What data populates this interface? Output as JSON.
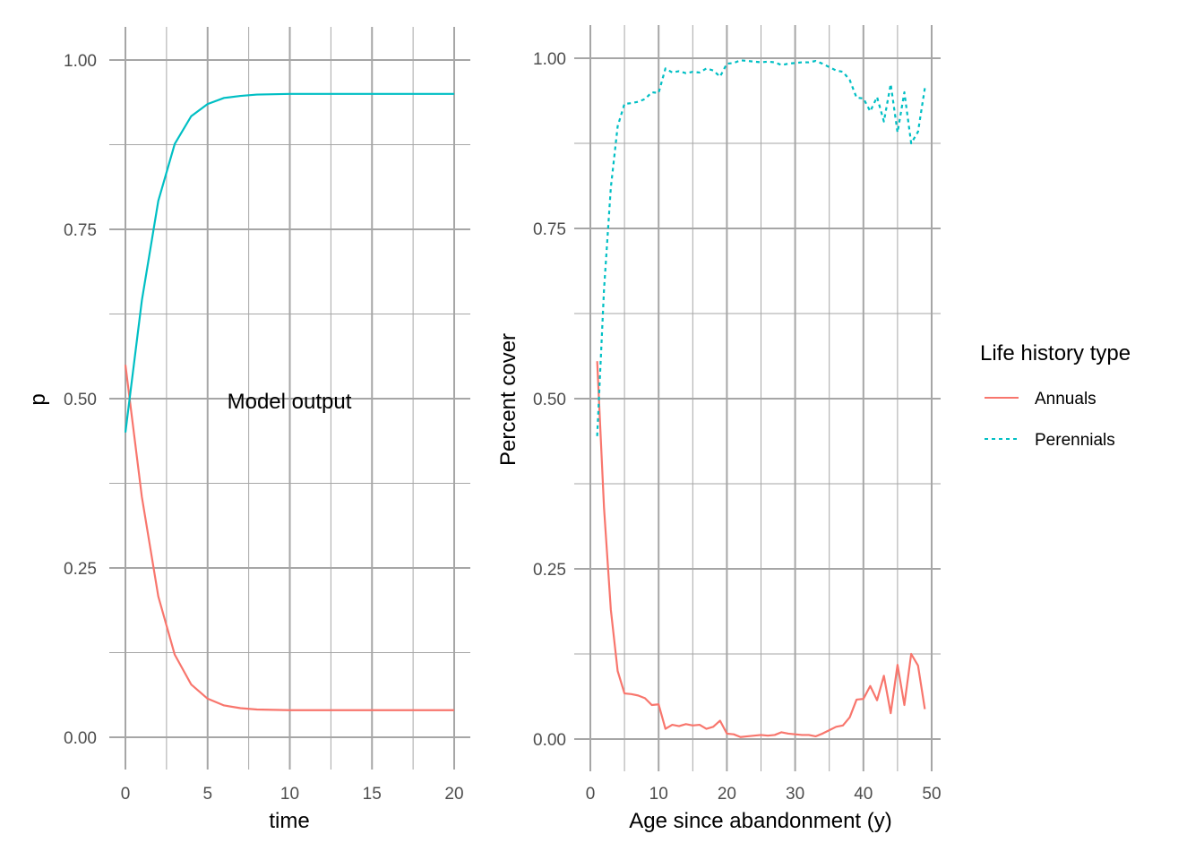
{
  "colors": {
    "annuals": "#F8766D",
    "perennials": "#00BFC4",
    "grid": "#A6A6A6"
  },
  "chart_data": [
    {
      "type": "line",
      "xlabel": "time",
      "ylabel": "p",
      "annotation": "Model output",
      "xlim": [
        0,
        20
      ],
      "ylim": [
        0,
        1
      ],
      "x_ticks": [
        "0",
        "5",
        "10",
        "15",
        "20"
      ],
      "y_ticks": [
        "0.00",
        "0.25",
        "0.50",
        "0.75",
        "1.00"
      ],
      "x": [
        0,
        1,
        2,
        3,
        4,
        5,
        6,
        7,
        8,
        9,
        10,
        11,
        12,
        13,
        14,
        15,
        16,
        17,
        18,
        19,
        20
      ],
      "series": [
        {
          "key": "annuals",
          "dash": "solid",
          "values": [
            0.55,
            0.355,
            0.208,
            0.122,
            0.078,
            0.057,
            0.047,
            0.043,
            0.041,
            0.0405,
            0.04,
            0.04,
            0.04,
            0.04,
            0.04,
            0.04,
            0.04,
            0.04,
            0.04,
            0.04,
            0.04
          ]
        },
        {
          "key": "perennials",
          "dash": "solid",
          "values": [
            0.45,
            0.645,
            0.792,
            0.876,
            0.917,
            0.935,
            0.944,
            0.947,
            0.949,
            0.9495,
            0.95,
            0.95,
            0.95,
            0.95,
            0.95,
            0.95,
            0.95,
            0.95,
            0.95,
            0.95,
            0.95
          ]
        }
      ]
    },
    {
      "type": "line",
      "xlabel": "Age since abandonment (y)",
      "ylabel": "Percent cover",
      "xlim": [
        0,
        50
      ],
      "ylim": [
        0,
        1
      ],
      "x_ticks": [
        "0",
        "10",
        "20",
        "30",
        "40",
        "50"
      ],
      "y_ticks": [
        "0.00",
        "0.25",
        "0.50",
        "0.75",
        "1.00"
      ],
      "legend": {
        "title": "Life history type",
        "position": "right"
      },
      "x": [
        1,
        2,
        3,
        4,
        5,
        6,
        7,
        8,
        9,
        10,
        11,
        12,
        13,
        14,
        15,
        16,
        17,
        18,
        19,
        20,
        21,
        22,
        23,
        24,
        25,
        26,
        27,
        28,
        29,
        30,
        31,
        32,
        33,
        34,
        35,
        36,
        37,
        38,
        39,
        40,
        41,
        42,
        43,
        44,
        45,
        46,
        47,
        48,
        49
      ],
      "series": [
        {
          "key": "annuals",
          "name": "Annuals",
          "dash": "solid",
          "values": [
            0.555,
            0.34,
            0.19,
            0.1,
            0.067,
            0.066,
            0.064,
            0.06,
            0.05,
            0.051,
            0.015,
            0.021,
            0.019,
            0.022,
            0.02,
            0.021,
            0.015,
            0.018,
            0.027,
            0.008,
            0.007,
            0.003,
            0.004,
            0.005,
            0.006,
            0.005,
            0.006,
            0.01,
            0.008,
            0.007,
            0.006,
            0.006,
            0.004,
            0.008,
            0.013,
            0.018,
            0.02,
            0.032,
            0.058,
            0.059,
            0.078,
            0.057,
            0.093,
            0.038,
            0.109,
            0.05,
            0.125,
            0.108,
            0.044
          ]
        },
        {
          "key": "perennials",
          "name": "Perennials",
          "dash": "dashed",
          "values": [
            0.445,
            0.66,
            0.81,
            0.9,
            0.933,
            0.934,
            0.936,
            0.94,
            0.95,
            0.949,
            0.985,
            0.979,
            0.981,
            0.978,
            0.98,
            0.979,
            0.985,
            0.982,
            0.973,
            0.992,
            0.993,
            0.997,
            0.996,
            0.995,
            0.994,
            0.995,
            0.994,
            0.99,
            0.992,
            0.993,
            0.994,
            0.994,
            0.996,
            0.992,
            0.987,
            0.982,
            0.98,
            0.968,
            0.942,
            0.941,
            0.922,
            0.943,
            0.907,
            0.962,
            0.891,
            0.95,
            0.875,
            0.892,
            0.956
          ]
        }
      ]
    }
  ]
}
